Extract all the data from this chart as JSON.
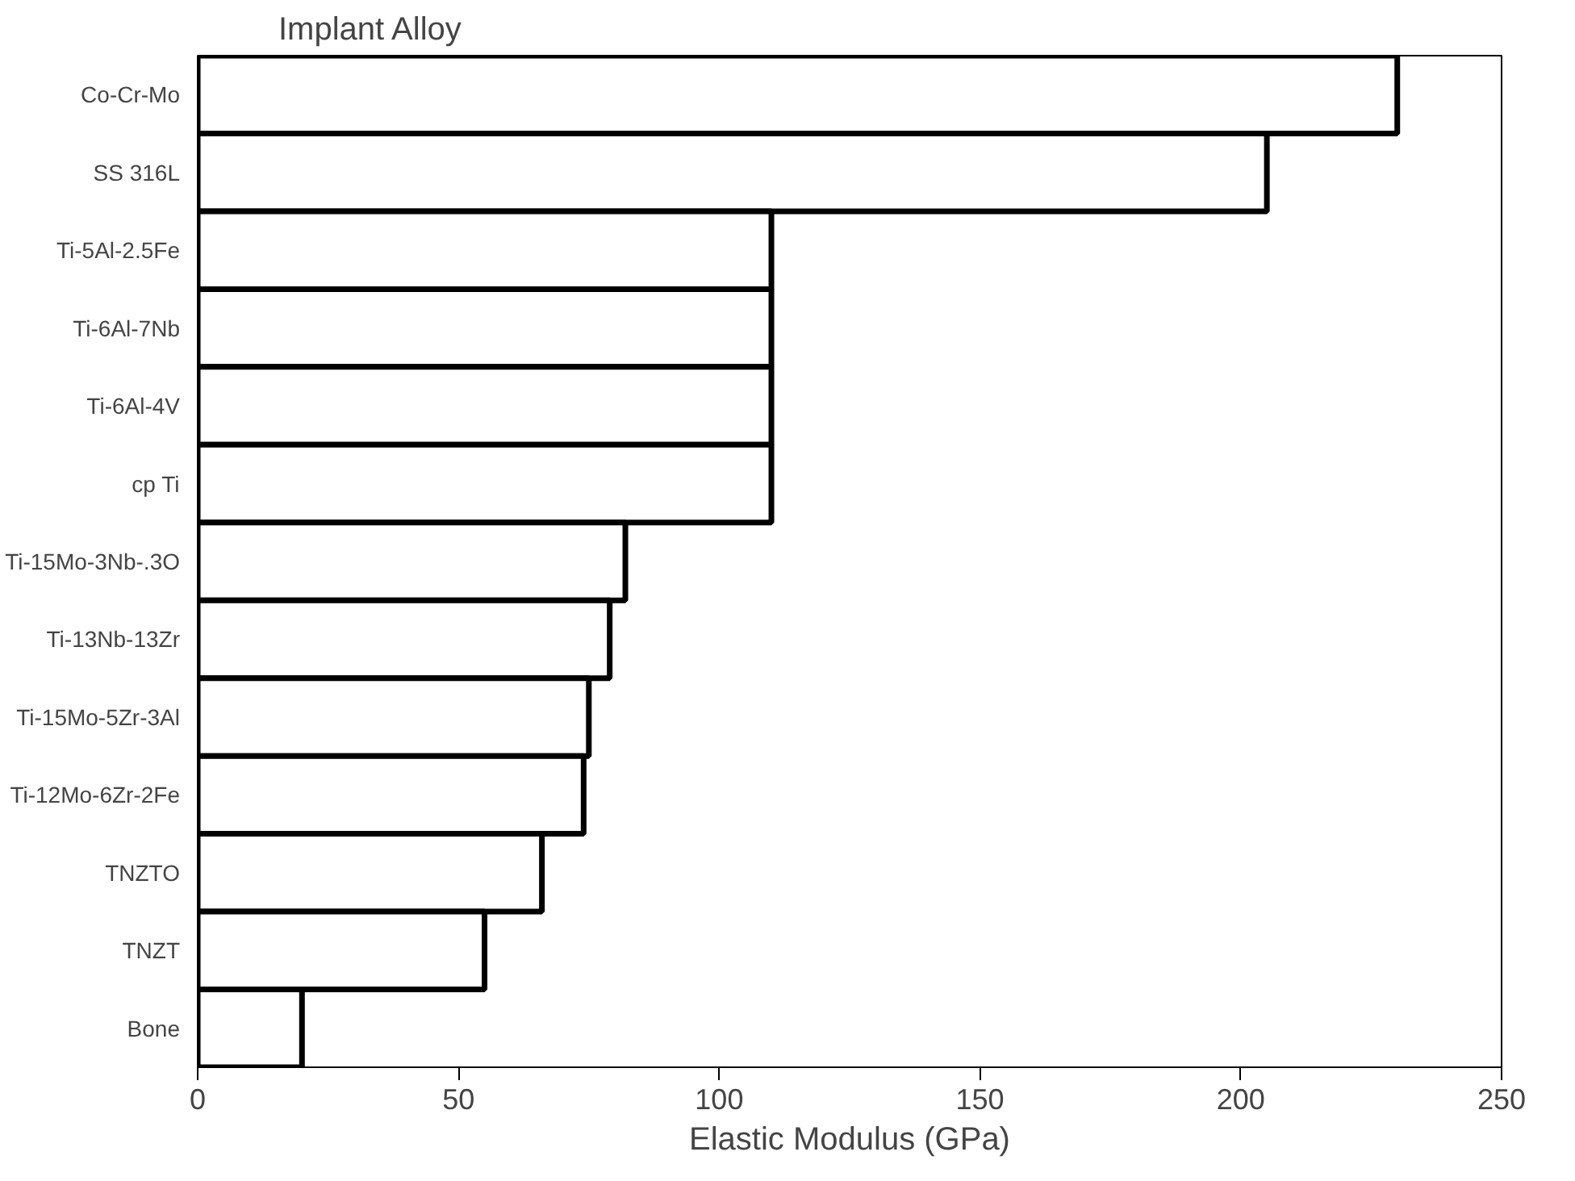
{
  "chart_data": {
    "type": "bar",
    "orientation": "horizontal",
    "ylabel": "Implant Alloy",
    "xlabel": "Elastic Modulus (GPa)",
    "categories": [
      "Co-Cr-Mo",
      "SS 316L",
      "Ti-5Al-2.5Fe",
      "Ti-6Al-7Nb",
      "Ti-6Al-4V",
      "cp Ti",
      "Ti-15Mo-3Nb-.3O",
      "Ti-13Nb-13Zr",
      "Ti-15Mo-5Zr-3Al",
      "Ti-12Mo-6Zr-2Fe",
      "TNZTO",
      "TNZT",
      "Bone"
    ],
    "values": [
      230,
      205,
      110,
      110,
      110,
      110,
      82,
      79,
      75,
      74,
      66,
      55,
      20
    ],
    "color": "#ffffff",
    "xlim": [
      0,
      250
    ],
    "xticks": [
      0,
      50,
      100,
      150,
      200,
      250
    ],
    "grid": false
  }
}
